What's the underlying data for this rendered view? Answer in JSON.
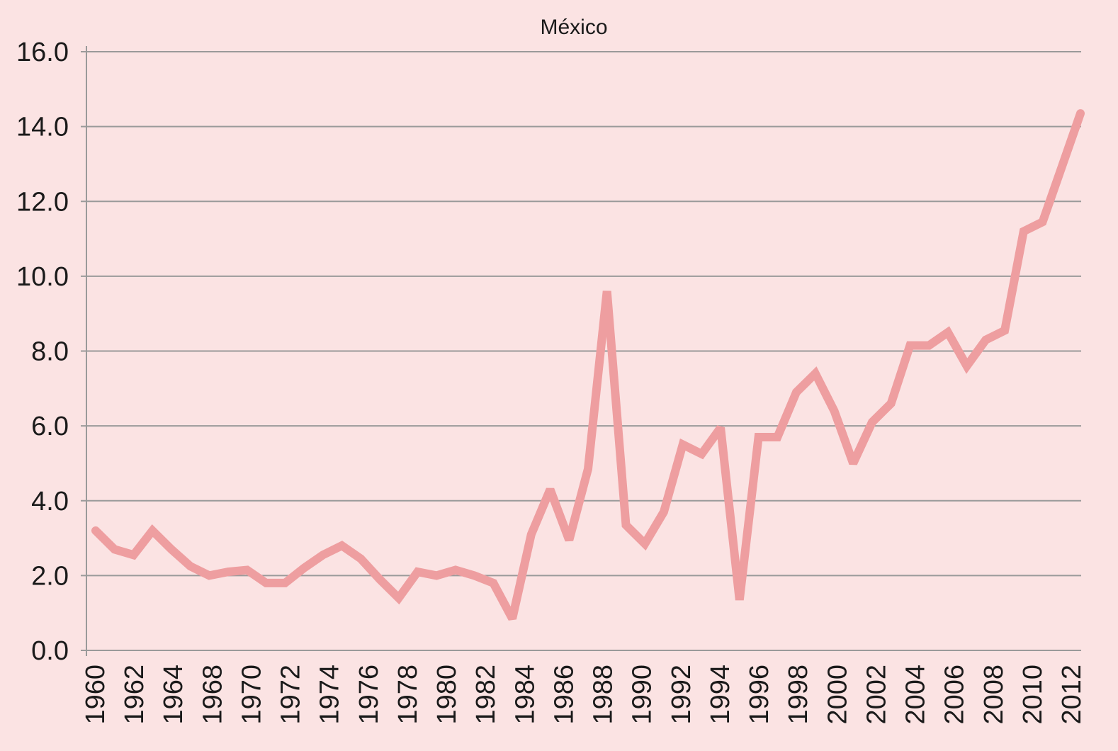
{
  "colors": {
    "background": "#fbe3e3",
    "line": "#ee9ea0",
    "grid": "#9a9a9a",
    "text": "#1a1a1a"
  },
  "chart_data": {
    "type": "line",
    "title": "México",
    "xlabel": "",
    "ylabel": "",
    "ylim": [
      0,
      16
    ],
    "yticks": [
      "16.0",
      "14.0",
      "12.0",
      "10.0",
      "8.0",
      "6.0",
      "4.0",
      "2.0",
      "0.0"
    ],
    "ytick_values": [
      16,
      14,
      12,
      10,
      8,
      6,
      4,
      2,
      0
    ],
    "xticks": [
      "1960",
      "1962",
      "1964",
      "1968",
      "1970",
      "1972",
      "1974",
      "1976",
      "1978",
      "1980",
      "1982",
      "1984",
      "1986",
      "1988",
      "1990",
      "1992",
      "1994",
      "1996",
      "1998",
      "2000",
      "2002",
      "2004",
      "2006",
      "2008",
      "2010",
      "2012"
    ],
    "grid": true,
    "legend": "none",
    "series": [
      {
        "values": [
          3.2,
          2.7,
          2.55,
          3.2,
          2.7,
          2.25,
          2.0,
          2.1,
          2.15,
          1.8,
          1.8,
          2.2,
          2.55,
          2.8,
          2.45,
          1.9,
          1.4,
          2.1,
          2.0,
          2.15,
          2.0,
          1.8,
          0.85,
          3.1,
          4.3,
          2.95,
          4.85,
          9.6,
          3.35,
          2.85,
          3.7,
          5.5,
          5.25,
          5.95,
          1.35,
          5.7,
          5.7,
          6.9,
          7.4,
          6.4,
          5.0,
          6.1,
          6.6,
          8.15,
          8.15,
          8.5,
          7.6,
          8.3,
          8.55,
          11.2,
          11.45,
          12.9,
          14.35
        ]
      }
    ]
  }
}
